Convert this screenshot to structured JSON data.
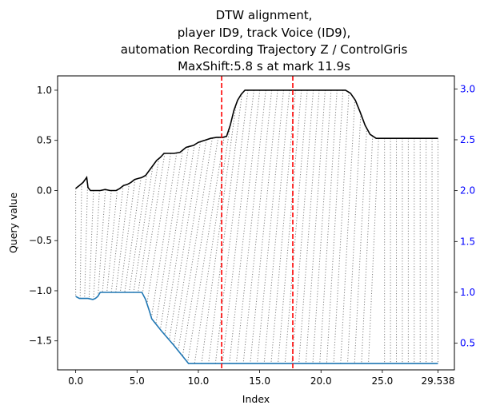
{
  "chart_data": {
    "type": "line",
    "title_lines": [
      "DTW alignment,",
      "player ID9, track Voice (ID9),",
      "automation Recording Trajectory Z / ControlGris",
      "MaxShift:5.8 s at mark 11.9s"
    ],
    "xlabel": "Index",
    "ylabel": "Query value",
    "xlim": [
      -1.476,
      30.876
    ],
    "ylim": [
      -1.789,
      1.143
    ],
    "y2lim": [
      0.238,
      3.128
    ],
    "x_ticks": [
      0.0,
      5.0,
      10.0,
      15.0,
      20.0,
      25.0,
      29.538
    ],
    "x_tick_labels": [
      "0.0",
      "5.0",
      "10.0",
      "15.0",
      "20.0",
      "25.0",
      "29.538"
    ],
    "y_ticks": [
      1.0,
      0.5,
      0.0,
      -0.5,
      -1.0,
      -1.5
    ],
    "y_tick_labels": [
      "1.0",
      "0.5",
      "0.0",
      "−0.5",
      "−1.0",
      "−1.5"
    ],
    "y2_ticks": [
      3.0,
      2.5,
      2.0,
      1.5,
      1.0,
      0.5
    ],
    "y2_tick_labels": [
      "3.0",
      "2.5",
      "2.0",
      "1.5",
      "1.0",
      "0.5"
    ],
    "colors": {
      "query": "#000000",
      "reference": "#1f77b4",
      "alignment": "#808080",
      "markers": "#ff0000",
      "right_axis": "#0000ff"
    },
    "vlines": [
      11.9,
      17.7
    ],
    "series": [
      {
        "axis": "left",
        "x": [
          0.0,
          0.3,
          0.6,
          0.9,
          1.0,
          1.2,
          1.6,
          2.0,
          2.4,
          2.8,
          3.0,
          3.3,
          3.6,
          3.9,
          4.2,
          4.5,
          4.8,
          5.1,
          5.4,
          5.7,
          6.0,
          6.3,
          6.6,
          6.9,
          7.2,
          7.5,
          8.0,
          8.5,
          9.0,
          9.3,
          9.6,
          10.0,
          10.5,
          11.0,
          11.5,
          12.0,
          12.3,
          12.6,
          12.9,
          13.2,
          13.5,
          13.8,
          14.1,
          14.4,
          15.0,
          16.0,
          17.0,
          18.0,
          19.0,
          20.0,
          21.0,
          22.0,
          22.4,
          22.8,
          23.2,
          23.6,
          24.0,
          24.5,
          25.0,
          26.0,
          27.0,
          28.0,
          29.538
        ],
        "y": [
          0.02,
          0.05,
          0.08,
          0.13,
          0.03,
          0.0,
          0.0,
          0.0,
          0.01,
          0.0,
          0.0,
          0.0,
          0.02,
          0.05,
          0.06,
          0.08,
          0.11,
          0.12,
          0.13,
          0.15,
          0.2,
          0.25,
          0.3,
          0.33,
          0.37,
          0.37,
          0.37,
          0.38,
          0.43,
          0.44,
          0.45,
          0.48,
          0.5,
          0.52,
          0.53,
          0.53,
          0.54,
          0.65,
          0.8,
          0.9,
          0.96,
          1.0,
          1.0,
          1.0,
          1.0,
          1.0,
          1.0,
          1.0,
          1.0,
          1.0,
          1.0,
          1.0,
          0.97,
          0.9,
          0.78,
          0.65,
          0.56,
          0.52,
          0.52,
          0.52,
          0.52,
          0.52,
          0.52
        ]
      },
      {
        "axis": "right",
        "x": [
          0.0,
          0.3,
          0.6,
          1.0,
          1.4,
          1.6,
          1.8,
          2.0,
          2.5,
          3.0,
          3.5,
          4.0,
          4.5,
          5.0,
          5.4,
          5.7,
          6.0,
          6.2,
          7.0,
          8.0,
          9.0,
          9.2,
          12.0,
          15.0,
          20.0,
          25.0,
          29.538
        ],
        "y": [
          0.96,
          0.94,
          0.94,
          0.94,
          0.93,
          0.94,
          0.96,
          1.0,
          1.0,
          1.0,
          1.0,
          1.0,
          1.0,
          1.0,
          1.0,
          0.93,
          0.82,
          0.74,
          0.62,
          0.48,
          0.33,
          0.3,
          0.3,
          0.3,
          0.3,
          0.3,
          0.3
        ]
      }
    ]
  }
}
